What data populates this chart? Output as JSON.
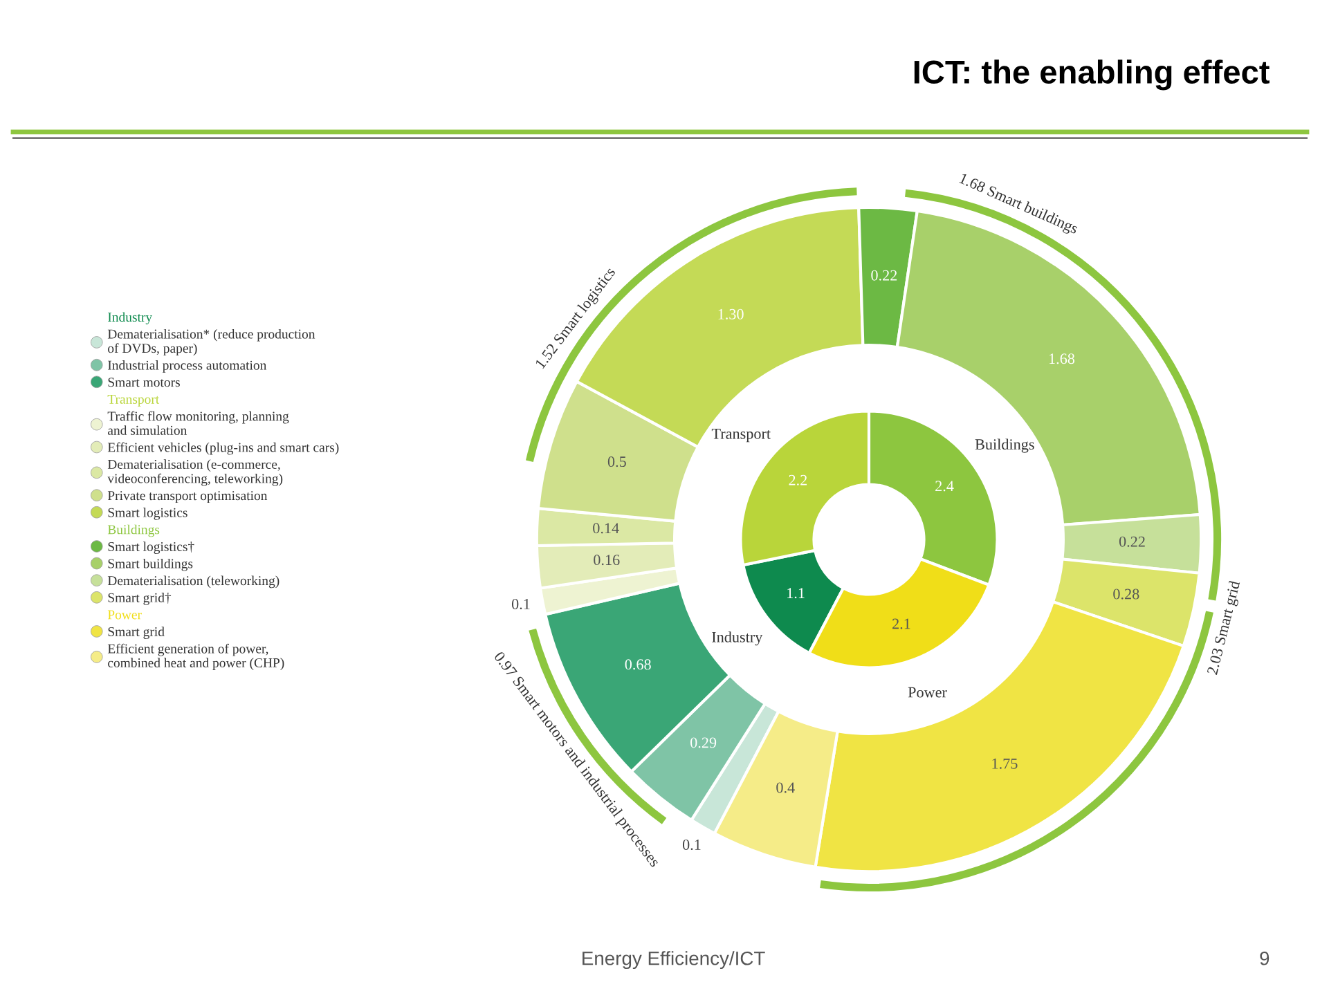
{
  "chart_data": {
    "type": "donut",
    "title": "ICT: the enabling effect",
    "data_labels": true,
    "legend": "left",
    "annotations": [
      "1.52 Smart logistics",
      "1.68 Smart buildings",
      "2.03 Smart grid",
      "0.97 Smart motors and industrial processes",
      "Energy Efficiency/ICT",
      "9"
    ],
    "categories": [
      "Industry",
      "Transport",
      "Buildings",
      "Power",
      "Dematerialisation* (reduce production\nof DVDs, paper)",
      "Industrial process automation",
      "Smart motors",
      "Traffic flow monitoring, planning\nand simulation",
      "Efficient vehicles (plug-ins and smart cars)",
      "Dematerialisation (e-commerce,\nvideoconferencing, teleworking)",
      "Private transport optimisation",
      "Smart logistics",
      "Smart logistics†",
      "Smart buildings",
      "Dematerialisation (teleworking)",
      "Smart grid†",
      "Smart grid",
      "Efficient generation of power,\ncombined heat and power (CHP)"
    ],
    "series": [
      {
        "values": [
          1.1,
          2.2,
          2.4,
          2.1,
          null,
          null,
          null,
          null,
          null,
          null,
          null,
          null,
          null,
          null,
          null,
          null,
          null,
          null
        ],
        "colors": [
          "#0e8a4e",
          "#b9d53a",
          "#8dc63f",
          "#f0de18",
          null,
          null,
          null,
          null,
          null,
          null,
          null,
          null,
          null,
          null,
          null,
          null,
          null,
          null
        ]
      },
      {
        "values": [
          null,
          null,
          null,
          null,
          0.1,
          0.29,
          0.68,
          0.1,
          0.16,
          0.14,
          0.5,
          1.3,
          0.22,
          1.68,
          0.22,
          0.28,
          1.75,
          0.4
        ],
        "value_labels": [
          null,
          null,
          null,
          null,
          "0.1",
          "0.29",
          "0.68",
          "0.1",
          "0.16",
          "0.14",
          "0.5",
          "1.30",
          "0.22",
          "1.68",
          "0.22",
          "0.28",
          "1.75",
          "0.4"
        ],
        "colors": [
          null,
          null,
          null,
          null,
          "#c8e6d8",
          "#7fc4a6",
          "#3aa676",
          "#eef3d2",
          "#e3ecb8",
          "#dbe8a4",
          "#cfe08c",
          "#c4da56",
          "#6cb944",
          "#a8d06a",
          "#c6e09a",
          "#dce46a",
          "#f0e444",
          "#f5ec88"
        ]
      }
    ]
  }
}
